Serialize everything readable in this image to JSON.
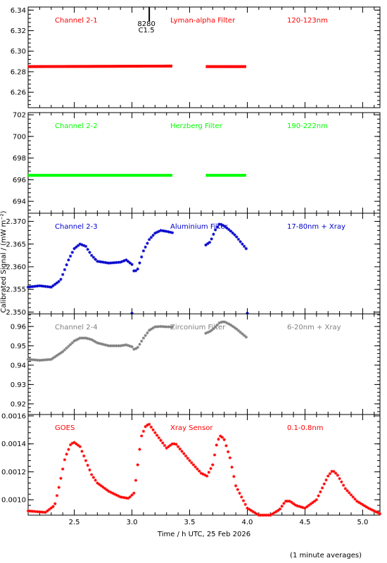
{
  "footnote": "(1 minute averages)",
  "chart_data": {
    "type": "scatter",
    "xlabel": "Time / h UTC, 25 Feb 2026",
    "ylabel": "Calibrated Signal / (mW m⁻²)",
    "xlim": [
      2.1,
      5.15
    ],
    "x_ticks": [
      2.5,
      3.0,
      3.5,
      4.0,
      4.5,
      5.0
    ],
    "x_tick_labels": [
      "2.5",
      "3.0",
      "3.5",
      "4.0",
      "4.5",
      "5.0"
    ],
    "flare_marker": {
      "x": 3.15,
      "labels": [
        "8280",
        "C1.5"
      ]
    },
    "panels": [
      {
        "labels": [
          "Channel 2-1",
          "Lyman-alpha Filter",
          "120-123nm"
        ],
        "color": "#ff0000",
        "ylim": [
          6.245,
          6.343
        ],
        "y_ticks": [
          6.26,
          6.28,
          6.3,
          6.32,
          6.34
        ],
        "y_tick_labels": [
          "6.26",
          "6.28",
          "6.30",
          "6.32",
          "6.34"
        ],
        "segments": [
          {
            "x": [
              2.1,
              3.35
            ],
            "y": [
              6.285,
              6.2855
            ]
          },
          {
            "x": [
              3.64,
              3.99
            ],
            "y": [
              6.285,
              6.285
            ]
          }
        ]
      },
      {
        "labels": [
          "Channel 2-2",
          "Herzberg Filter",
          "190-222nm"
        ],
        "color": "#00ff00",
        "ylim": [
          692.9,
          702.2
        ],
        "y_ticks": [
          694,
          696,
          698,
          700,
          702
        ],
        "y_tick_labels": [
          "694",
          "696",
          "698",
          "700",
          "702"
        ],
        "segments": [
          {
            "x": [
              2.1,
              3.35
            ],
            "y": [
              696.4,
              696.4
            ]
          },
          {
            "x": [
              3.64,
              3.99
            ],
            "y": [
              696.4,
              696.4
            ]
          }
        ]
      },
      {
        "labels": [
          "Channel 2-3",
          "Aluminium Filter",
          "17-80nm + Xray"
        ],
        "color": "#0000cc",
        "ylim": [
          2.3496,
          2.3718
        ],
        "y_ticks": [
          2.35,
          2.355,
          2.36,
          2.365,
          2.37
        ],
        "y_tick_labels": [
          "2.350",
          "2.355",
          "2.360",
          "2.365",
          "2.370"
        ],
        "curves": [
          {
            "x": [
              2.1,
              2.2,
              2.3,
              2.38,
              2.45,
              2.5,
              2.55,
              2.6,
              2.65,
              2.7,
              2.8,
              2.9,
              2.95,
              3.0,
              3.02,
              3.05,
              3.1,
              3.15,
              3.2,
              3.25,
              3.3,
              3.35
            ],
            "y": [
              2.3555,
              2.3558,
              2.3555,
              2.357,
              2.3615,
              2.364,
              2.365,
              2.3645,
              2.3625,
              2.3612,
              2.3608,
              2.361,
              2.3615,
              2.3605,
              2.3588,
              2.3595,
              2.3635,
              2.366,
              2.3674,
              2.368,
              2.3678,
              2.3675
            ]
          },
          {
            "x": [
              3.64,
              3.68,
              3.72,
              3.76,
              3.8,
              3.85,
              3.9,
              3.95,
              3.99
            ],
            "y": [
              2.3648,
              2.3655,
              2.368,
              2.3695,
              2.369,
              2.368,
              2.3668,
              2.3652,
              2.364
            ]
          }
        ],
        "outliers": [
          {
            "x": [
              3.0,
              4.0
            ],
            "y": [
              2.3494,
              2.3496
            ]
          }
        ]
      },
      {
        "labels": [
          "Channel 2-4",
          "Zirconium Filter",
          "6-20nm + Xray"
        ],
        "color": "#808080",
        "ylim": [
          0.9145,
          0.9665
        ],
        "y_ticks": [
          0.92,
          0.93,
          0.94,
          0.95,
          0.96
        ],
        "y_tick_labels": [
          "0.92",
          "0.93",
          "0.94",
          "0.95",
          "0.96"
        ],
        "curves": [
          {
            "x": [
              2.1,
              2.2,
              2.3,
              2.4,
              2.5,
              2.55,
              2.6,
              2.65,
              2.7,
              2.8,
              2.9,
              2.95,
              3.0,
              3.02,
              3.05,
              3.1,
              3.15,
              3.2,
              3.25,
              3.3,
              3.35
            ],
            "y": [
              0.943,
              0.9425,
              0.943,
              0.947,
              0.9525,
              0.954,
              0.954,
              0.9532,
              0.9515,
              0.95,
              0.95,
              0.9505,
              0.9495,
              0.948,
              0.9492,
              0.954,
              0.958,
              0.9598,
              0.96,
              0.9598,
              0.9598
            ]
          },
          {
            "x": [
              3.64,
              3.68,
              3.72,
              3.76,
              3.8,
              3.85,
              3.9,
              3.95,
              3.99
            ],
            "y": [
              0.9565,
              0.9575,
              0.9595,
              0.962,
              0.9625,
              0.961,
              0.959,
              0.9565,
              0.9545
            ]
          }
        ]
      },
      {
        "labels": [
          "GOES",
          "Xray Sensor",
          "0.1-0.8nm"
        ],
        "color": "#ff0000",
        "ylim": [
          0.00089,
          0.00161
        ],
        "y_ticks": [
          0.001,
          0.0012,
          0.0014,
          0.0016
        ],
        "y_tick_labels": [
          "0.0010",
          "0.0012",
          "0.0014",
          "0.0016"
        ],
        "curves": [
          {
            "x": [
              2.1,
              2.25,
              2.33,
              2.37,
              2.42,
              2.47,
              2.5,
              2.55,
              2.6,
              2.65,
              2.7,
              2.8,
              2.9,
              2.97,
              3.02,
              3.05,
              3.08,
              3.12,
              3.15,
              3.2,
              3.3,
              3.35,
              3.38,
              3.42,
              3.5,
              3.6,
              3.65,
              3.7,
              3.74,
              3.77,
              3.8,
              3.85,
              3.9,
              4.0,
              4.1,
              4.2,
              4.28,
              4.33,
              4.37,
              4.42,
              4.5,
              4.6,
              4.7,
              4.74,
              4.78,
              4.85,
              4.95,
              5.05,
              5.15
            ],
            "y": [
              0.00092,
              0.00091,
              0.00096,
              0.0011,
              0.0013,
              0.0014,
              0.00141,
              0.00138,
              0.00128,
              0.00118,
              0.00112,
              0.00106,
              0.00102,
              0.00101,
              0.00105,
              0.00125,
              0.00145,
              0.00153,
              0.00154,
              0.00148,
              0.00137,
              0.0014,
              0.0014,
              0.00136,
              0.00128,
              0.00119,
              0.00117,
              0.00125,
              0.00142,
              0.00146,
              0.00143,
              0.0013,
              0.0011,
              0.00094,
              0.00089,
              0.00089,
              0.00093,
              0.00099,
              0.00099,
              0.00096,
              0.00094,
              0.001,
              0.00117,
              0.00121,
              0.00118,
              0.00108,
              0.00099,
              0.00094,
              0.0009
            ]
          }
        ]
      }
    ]
  }
}
